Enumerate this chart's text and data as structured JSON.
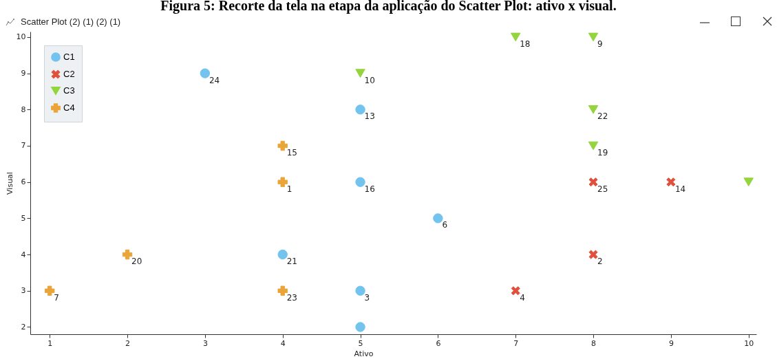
{
  "chart_data": {
    "type": "scatter",
    "title": "Figura 5: Recorte da tela na etapa da aplicação do Scatter Plot: ativo x visual.",
    "subtitle": "Scatter Plot (2) (1) (2) (1)",
    "xlabel": "Ativo",
    "ylabel": "Visual",
    "xlim": [
      0.75,
      10.1
    ],
    "ylim": [
      1.8,
      10.15
    ],
    "xticks": [
      1,
      2,
      3,
      4,
      5,
      6,
      7,
      8,
      9,
      10
    ],
    "yticks": [
      2,
      3,
      4,
      5,
      6,
      7,
      8,
      9,
      10
    ],
    "grid": false,
    "legend": "top left",
    "series": [
      {
        "name": "C1",
        "color": "#73c3ef",
        "marker": "circle",
        "x": [
          3,
          5,
          5,
          6,
          4,
          5,
          5
        ],
        "values": [
          9,
          8,
          6,
          5,
          4,
          3,
          2
        ]
      },
      {
        "name": "C2",
        "color": "#e0503c",
        "marker": "cross",
        "x": [
          8,
          9,
          8,
          7
        ],
        "values": [
          6,
          6,
          4,
          3
        ]
      },
      {
        "name": "C3",
        "color": "#94d43c",
        "marker": "triangle",
        "x": [
          7,
          8,
          5,
          8,
          8,
          10
        ],
        "values": [
          10,
          10,
          9,
          8,
          7,
          6
        ]
      },
      {
        "name": "C4",
        "color": "#eaa53a",
        "marker": "plus",
        "x": [
          4,
          4,
          2,
          1,
          4
        ],
        "values": [
          7,
          6,
          4,
          3,
          3
        ]
      }
    ],
    "annotations": [
      {
        "text": "24",
        "x": 3,
        "y": 9
      },
      {
        "text": "13",
        "x": 5,
        "y": 8
      },
      {
        "text": "16",
        "x": 5,
        "y": 6
      },
      {
        "text": "6",
        "x": 6,
        "y": 5
      },
      {
        "text": "21",
        "x": 4,
        "y": 4
      },
      {
        "text": "3",
        "x": 5,
        "y": 3
      },
      {
        "text": "25",
        "x": 8,
        "y": 6
      },
      {
        "text": "14",
        "x": 9,
        "y": 6
      },
      {
        "text": "2",
        "x": 8,
        "y": 4
      },
      {
        "text": "4",
        "x": 7,
        "y": 3
      },
      {
        "text": "18",
        "x": 7,
        "y": 10
      },
      {
        "text": "9",
        "x": 8,
        "y": 10
      },
      {
        "text": "10",
        "x": 5,
        "y": 9
      },
      {
        "text": "22",
        "x": 8,
        "y": 8
      },
      {
        "text": "19",
        "x": 8,
        "y": 7
      },
      {
        "text": "15",
        "x": 4,
        "y": 7
      },
      {
        "text": "1",
        "x": 4,
        "y": 6
      },
      {
        "text": "20",
        "x": 2,
        "y": 4
      },
      {
        "text": "7",
        "x": 1,
        "y": 3
      },
      {
        "text": "23",
        "x": 4,
        "y": 3
      }
    ]
  }
}
